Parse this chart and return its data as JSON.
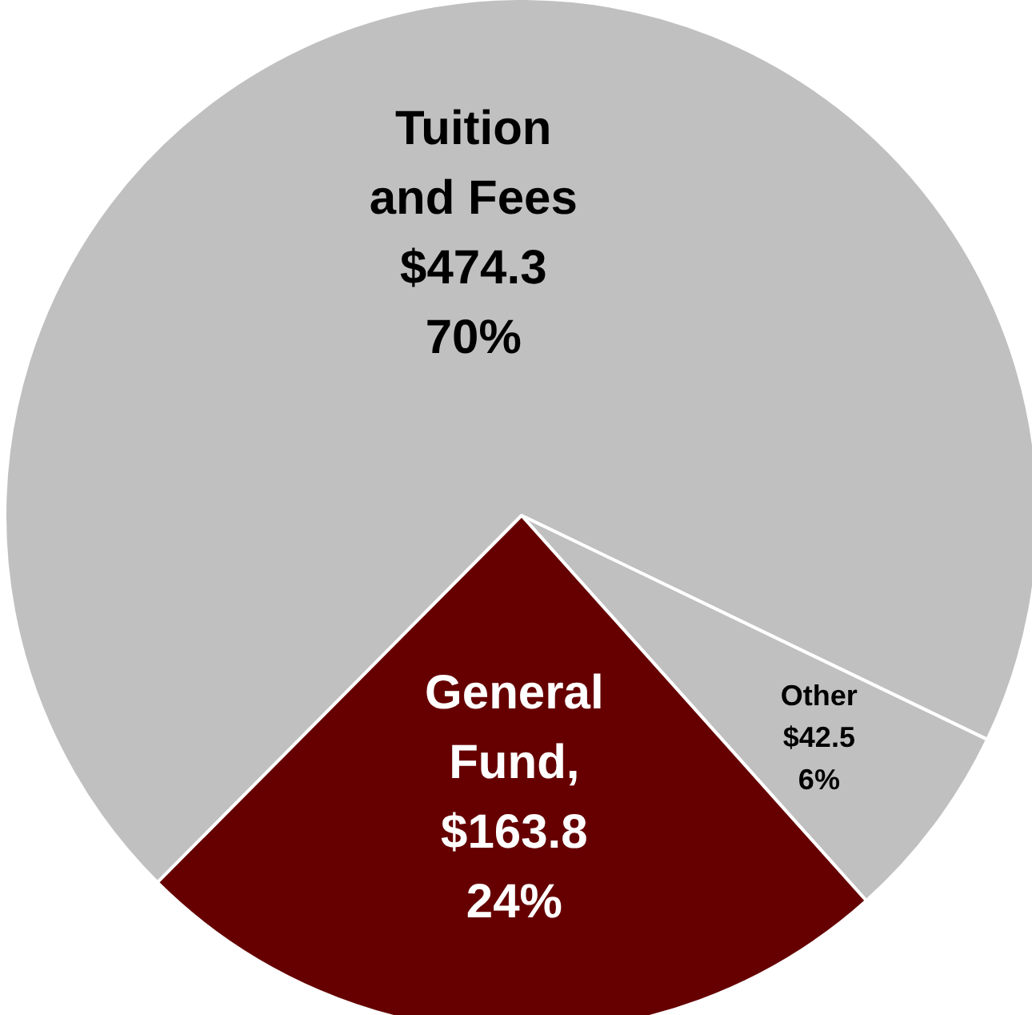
{
  "chart_data": {
    "type": "pie",
    "categories": [
      "Tuition and Fees",
      "Other",
      "General Fund"
    ],
    "values": [
      474.3,
      42.5,
      163.8
    ],
    "colors": [
      "#c0c0c0",
      "#c0c0c0",
      "#660000"
    ],
    "value_labels": [
      "\n$474.3\n70%",
      "\n$42.5\n6%",
      ",\n$163.8\n24%"
    ],
    "legend": false
  }
}
